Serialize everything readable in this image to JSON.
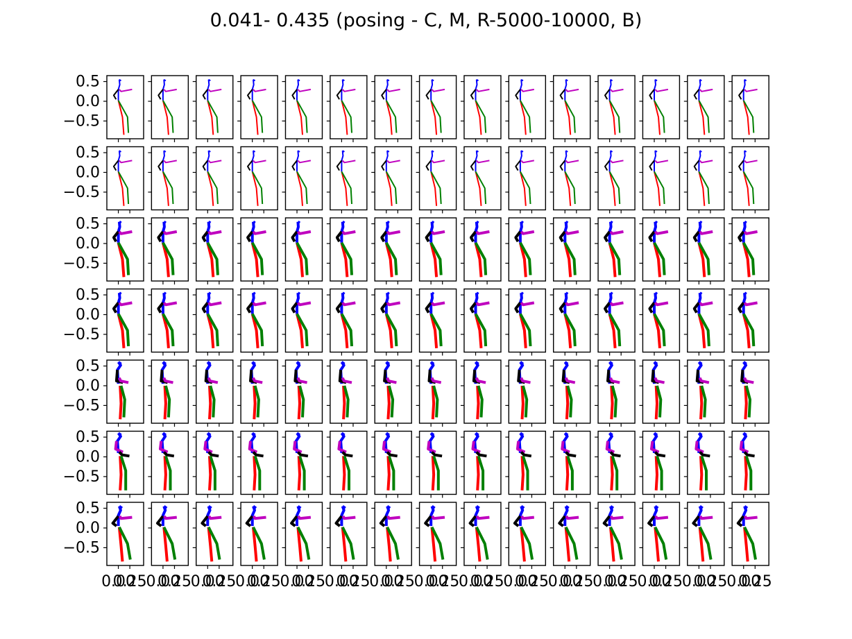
{
  "title": "0.041- 0.435 (posing - C, M, R-5000-10000, B)",
  "chart_data": {
    "type": "line",
    "title": "0.041- 0.435 (posing - C, M, R-5000-10000, B)",
    "grid_rows": 7,
    "grid_cols": 15,
    "xlim": [
      -0.25,
      0.55
    ],
    "ylim": [
      -0.95,
      0.65
    ],
    "y_ticks": [
      0.5,
      0.0,
      -0.5
    ],
    "y_tick_labels": [
      "0.5",
      "0.0",
      "−0.5"
    ],
    "x_ticks": [
      0.0,
      0.25
    ],
    "x_tick_labels": [
      "0.00",
      "0.25"
    ],
    "grid": false,
    "series": [
      {
        "name": "",
        "color": "#000000"
      },
      {
        "name": "",
        "color": "#bf00bf"
      },
      {
        "name": "",
        "color": "#0000ff"
      },
      {
        "name": "",
        "color": "#ff0000"
      },
      {
        "name": "",
        "color": "#008000"
      }
    ],
    "rows": [
      {
        "row": 1,
        "pose": "A",
        "thick": false
      },
      {
        "row": 2,
        "pose": "A",
        "thick": false
      },
      {
        "row": 3,
        "pose": "A",
        "thick": true
      },
      {
        "row": 4,
        "pose": "A",
        "thick": true
      },
      {
        "row": 5,
        "pose": "B",
        "thick": true
      },
      {
        "row": 6,
        "pose": "C",
        "thick": true
      },
      {
        "row": 7,
        "pose": "D",
        "thick": true
      }
    ]
  }
}
